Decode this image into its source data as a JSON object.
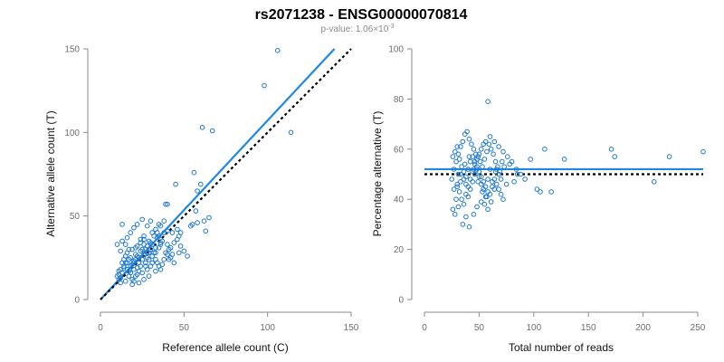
{
  "title": "rs2071238 - ENSG00000070814",
  "subtitle": {
    "base": "p-value: 1.06×10",
    "exponent": "-3"
  },
  "colors": {
    "points": "#1f78d1",
    "fit": "#1e88e5",
    "reference": "#000000",
    "axis": "#888888",
    "ticks": "#6e6e6e"
  },
  "chart_data": [
    {
      "type": "scatter",
      "xlabel": "Reference allele count (C)",
      "ylabel": "Alternative allele count (T)",
      "xlim": [
        0,
        150
      ],
      "ylim": [
        0,
        150
      ],
      "xticks": [
        0,
        50,
        100,
        150
      ],
      "yticks": [
        0,
        50,
        100,
        150
      ],
      "grid": false,
      "lines": [
        {
          "style": "solid",
          "color": "#1e88e5",
          "x": [
            0,
            140
          ],
          "y": [
            0,
            150
          ]
        },
        {
          "style": "dotted",
          "color": "#000000",
          "x": [
            0,
            150
          ],
          "y": [
            0,
            150
          ]
        }
      ],
      "points": [
        [
          106,
          149
        ],
        [
          98,
          128
        ],
        [
          61,
          103
        ],
        [
          67,
          101
        ],
        [
          114,
          100
        ],
        [
          56,
          76
        ],
        [
          60,
          69
        ],
        [
          45,
          69
        ],
        [
          58,
          65
        ],
        [
          39,
          57
        ],
        [
          40,
          57
        ],
        [
          57,
          53
        ],
        [
          65,
          49
        ],
        [
          62,
          47
        ],
        [
          55,
          45
        ],
        [
          58,
          46
        ],
        [
          54,
          44
        ],
        [
          46,
          42
        ],
        [
          48,
          40
        ],
        [
          63,
          41
        ],
        [
          47,
          38
        ],
        [
          30,
          47
        ],
        [
          35,
          45
        ],
        [
          36,
          44
        ],
        [
          33,
          42
        ],
        [
          38,
          47
        ],
        [
          31,
          40
        ],
        [
          34,
          40
        ],
        [
          26,
          38
        ],
        [
          24,
          36
        ],
        [
          29,
          35
        ],
        [
          37,
          35
        ],
        [
          35,
          31
        ],
        [
          40,
          33
        ],
        [
          41,
          30
        ],
        [
          33,
          28
        ],
        [
          36,
          33
        ],
        [
          28,
          28
        ],
        [
          25,
          30
        ],
        [
          22,
          26
        ],
        [
          21,
          24
        ],
        [
          20,
          22
        ],
        [
          19,
          21
        ],
        [
          17,
          24
        ],
        [
          15,
          26
        ],
        [
          13,
          22
        ],
        [
          12,
          18
        ],
        [
          11,
          15
        ],
        [
          11,
          12
        ],
        [
          10,
          14
        ],
        [
          12,
          10
        ],
        [
          13,
          16
        ],
        [
          14,
          19
        ],
        [
          15,
          22
        ],
        [
          16,
          18
        ],
        [
          18,
          16
        ],
        [
          17,
          14
        ],
        [
          19,
          12
        ],
        [
          20,
          11
        ],
        [
          21,
          14
        ],
        [
          22,
          19
        ],
        [
          23,
          22
        ],
        [
          24,
          20
        ],
        [
          25,
          24
        ],
        [
          26,
          27
        ],
        [
          27,
          22
        ],
        [
          28,
          25
        ],
        [
          29,
          28
        ],
        [
          30,
          30
        ],
        [
          31,
          26
        ],
        [
          32,
          28
        ],
        [
          33,
          24
        ],
        [
          34,
          22
        ],
        [
          35,
          20
        ],
        [
          36,
          18
        ],
        [
          38,
          24
        ],
        [
          40,
          27
        ],
        [
          42,
          25
        ],
        [
          44,
          22
        ],
        [
          30,
          20
        ],
        [
          28,
          18
        ],
        [
          25,
          16
        ],
        [
          22,
          15
        ],
        [
          20,
          18
        ],
        [
          18,
          20
        ],
        [
          16,
          22
        ],
        [
          14,
          24
        ],
        [
          12,
          29
        ],
        [
          10,
          33
        ],
        [
          13,
          35
        ],
        [
          16,
          37
        ],
        [
          18,
          40
        ],
        [
          20,
          43
        ],
        [
          22,
          45
        ],
        [
          13,
          45
        ],
        [
          25,
          48
        ],
        [
          28,
          44
        ],
        [
          32,
          38
        ],
        [
          34,
          37
        ],
        [
          36,
          34
        ],
        [
          39,
          28
        ],
        [
          42,
          31
        ],
        [
          44,
          34
        ],
        [
          46,
          36
        ],
        [
          48,
          32
        ],
        [
          50,
          29
        ],
        [
          52,
          26
        ],
        [
          47,
          28
        ],
        [
          43,
          27
        ],
        [
          41,
          24
        ],
        [
          37,
          21
        ],
        [
          33,
          17
        ],
        [
          29,
          14
        ],
        [
          26,
          12
        ],
        [
          23,
          10
        ],
        [
          19,
          9
        ],
        [
          15,
          11
        ],
        [
          12,
          13
        ],
        [
          11,
          17
        ],
        [
          14,
          20
        ],
        [
          17,
          17
        ],
        [
          20,
          23
        ],
        [
          23,
          25
        ],
        [
          27,
          30
        ],
        [
          31,
          33
        ],
        [
          35,
          38
        ],
        [
          38,
          40
        ],
        [
          40,
          41
        ],
        [
          43,
          40
        ],
        [
          26,
          33
        ],
        [
          24,
          29
        ],
        [
          21,
          27
        ],
        [
          18,
          25
        ],
        [
          16,
          28
        ],
        [
          19,
          30
        ],
        [
          22,
          32
        ],
        [
          26,
          36
        ],
        [
          30,
          34
        ],
        [
          33,
          31
        ],
        [
          28,
          32
        ],
        [
          24,
          34
        ],
        [
          21,
          31
        ],
        [
          17,
          30
        ],
        [
          15,
          33
        ],
        [
          29,
          24
        ],
        [
          31,
          22
        ],
        [
          27,
          20
        ],
        [
          23,
          17
        ]
      ]
    },
    {
      "type": "scatter",
      "xlabel": "Total number of reads",
      "ylabel": "Percentage alternative (T)",
      "xlim": [
        0,
        250
      ],
      "ylim": [
        0,
        100
      ],
      "xticks": [
        0,
        50,
        100,
        150,
        200,
        250
      ],
      "yticks": [
        0,
        20,
        40,
        60,
        80,
        100
      ],
      "grid": false,
      "lines": [
        {
          "style": "solid",
          "color": "#1e88e5",
          "x": [
            0,
            255
          ],
          "y": [
            52,
            52
          ]
        },
        {
          "style": "dotted",
          "color": "#000000",
          "x": [
            0,
            255
          ],
          "y": [
            50,
            50
          ]
        }
      ],
      "points": [
        [
          58,
          79
        ],
        [
          255,
          59
        ],
        [
          174,
          57
        ],
        [
          224,
          57
        ],
        [
          171,
          60
        ],
        [
          128,
          56
        ],
        [
          210,
          47
        ],
        [
          110,
          60
        ],
        [
          97,
          56
        ],
        [
          116,
          43
        ],
        [
          106,
          43
        ],
        [
          103,
          44
        ],
        [
          85,
          50
        ],
        [
          82,
          47
        ],
        [
          75,
          46
        ],
        [
          78,
          54
        ],
        [
          73,
          53
        ],
        [
          70,
          48
        ],
        [
          68,
          50
        ],
        [
          66,
          52
        ],
        [
          64,
          44
        ],
        [
          62,
          47
        ],
        [
          60,
          52
        ],
        [
          58,
          48
        ],
        [
          56,
          41
        ],
        [
          54,
          44
        ],
        [
          52,
          46
        ],
        [
          50,
          49
        ],
        [
          48,
          52
        ],
        [
          46,
          50
        ],
        [
          44,
          47
        ],
        [
          42,
          44
        ],
        [
          40,
          41
        ],
        [
          38,
          46
        ],
        [
          36,
          48
        ],
        [
          35,
          30
        ],
        [
          38,
          33
        ],
        [
          41,
          29
        ],
        [
          45,
          34
        ],
        [
          48,
          37
        ],
        [
          52,
          39
        ],
        [
          55,
          38
        ],
        [
          58,
          36
        ],
        [
          31,
          37
        ],
        [
          29,
          40
        ],
        [
          27,
          44
        ],
        [
          25,
          48
        ],
        [
          27,
          52
        ],
        [
          29,
          55
        ],
        [
          31,
          58
        ],
        [
          33,
          61
        ],
        [
          35,
          63
        ],
        [
          37,
          66
        ],
        [
          39,
          67
        ],
        [
          41,
          64
        ],
        [
          43,
          62
        ],
        [
          45,
          60
        ],
        [
          47,
          58
        ],
        [
          49,
          57
        ],
        [
          51,
          55
        ],
        [
          53,
          53
        ],
        [
          55,
          56
        ],
        [
          57,
          59
        ],
        [
          59,
          62
        ],
        [
          61,
          60
        ],
        [
          63,
          58
        ],
        [
          65,
          55
        ],
        [
          67,
          53
        ],
        [
          69,
          51
        ],
        [
          71,
          55
        ],
        [
          26,
          57
        ],
        [
          28,
          59
        ],
        [
          30,
          61
        ],
        [
          32,
          56
        ],
        [
          34,
          53
        ],
        [
          36,
          51
        ],
        [
          38,
          49
        ],
        [
          40,
          52
        ],
        [
          42,
          55
        ],
        [
          44,
          57
        ],
        [
          46,
          55
        ],
        [
          48,
          53
        ],
        [
          50,
          51
        ],
        [
          52,
          49
        ],
        [
          54,
          47
        ],
        [
          56,
          45
        ],
        [
          58,
          43
        ],
        [
          60,
          42
        ],
        [
          62,
          45
        ],
        [
          64,
          48
        ],
        [
          66,
          46
        ],
        [
          68,
          44
        ],
        [
          70,
          42
        ],
        [
          72,
          40
        ],
        [
          30,
          46
        ],
        [
          32,
          43
        ],
        [
          34,
          40
        ],
        [
          36,
          38
        ],
        [
          38,
          42
        ],
        [
          40,
          45
        ],
        [
          42,
          48
        ],
        [
          44,
          51
        ],
        [
          46,
          54
        ],
        [
          48,
          56
        ],
        [
          50,
          58
        ],
        [
          52,
          60
        ],
        [
          54,
          62
        ],
        [
          56,
          63
        ],
        [
          60,
          65
        ],
        [
          64,
          63
        ],
        [
          68,
          61
        ],
        [
          72,
          59
        ],
        [
          76,
          57
        ],
        [
          80,
          55
        ],
        [
          84,
          52
        ],
        [
          88,
          50
        ],
        [
          92,
          48
        ],
        [
          33,
          50
        ],
        [
          37,
          54
        ],
        [
          41,
          57
        ],
        [
          45,
          52
        ],
        [
          49,
          47
        ],
        [
          53,
          43
        ],
        [
          57,
          41
        ],
        [
          61,
          39
        ],
        [
          65,
          51
        ],
        [
          26,
          36
        ],
        [
          28,
          34
        ],
        [
          30,
          45
        ],
        [
          31,
          50
        ],
        [
          33,
          47
        ]
      ]
    }
  ]
}
